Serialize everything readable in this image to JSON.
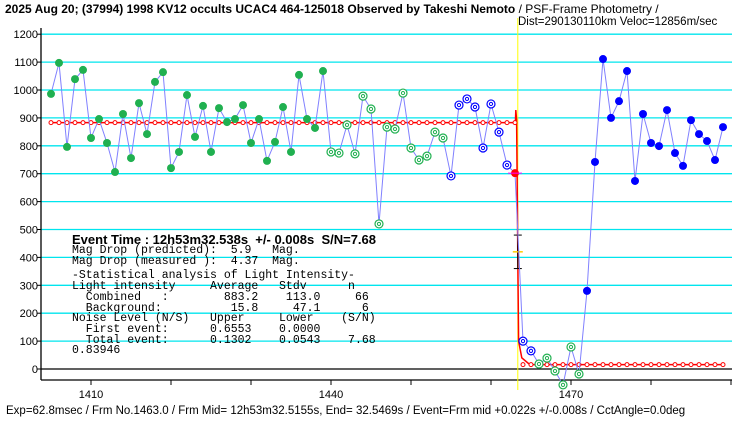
{
  "header": {
    "title_bold": "2025 Aug 20; (37994) 1998 KV12 occults UCAC4 464-125018 Observed by Takeshi Nemoto",
    "title_rest": " / PSF-Frame Photometry /",
    "dist": "Dist=290130110km Veloc=12856m/sec"
  },
  "stats": {
    "event_time": "Event Time : 12h53m32.538s  +/- 0.008s  S/N=7.68",
    "lines": [
      "Mag Drop (predicted):  5.9   Mag.",
      "Mag Drop (measured ):  4.37  Mag.",
      "-Statistical analysis of Light Intensity-",
      "Light intensity     Average   Stdv      n",
      "  Combined   :        883.2    113.0     66",
      "  Background:          15.8     47.1      6",
      "Noise Level (N/S)   Upper     Lower    (S/N)",
      "  First event:      0.6553    0.0000",
      "  Total event:      0.1302    0.0543    7.68",
      "0.83946"
    ]
  },
  "footer": "Exp=62.8msec / Frm No.1463.0 / Frm Mid= 12h53m32.5155s,  End= 32.5469s / Event=Frm mid +0.022s +/-0.008s / CctAngle=0.0deg",
  "chart_data": {
    "type": "scatter",
    "xlim": [
      1404,
      1490
    ],
    "ylim": [
      -30,
      1230
    ],
    "x_ticks": [
      1410,
      1440,
      1470
    ],
    "y_ticks": [
      0,
      100,
      200,
      300,
      400,
      500,
      600,
      700,
      800,
      900,
      1000,
      1100,
      1200
    ],
    "grid": true,
    "colors": {
      "grid": "#00e5ee",
      "line": "#8080ff",
      "model": "#ff0000",
      "green": "#20b050",
      "blue": "#0000ff",
      "event_line": "#ffff00"
    },
    "x": [
      1405,
      1406,
      1407,
      1408,
      1409,
      1410,
      1411,
      1412,
      1413,
      1414,
      1415,
      1416,
      1417,
      1418,
      1419,
      1420,
      1421,
      1422,
      1423,
      1424,
      1425,
      1426,
      1427,
      1428,
      1429,
      1430,
      1431,
      1432,
      1433,
      1434,
      1435,
      1436,
      1437,
      1438,
      1439,
      1440,
      1441,
      1442,
      1443,
      1444,
      1445,
      1446,
      1447,
      1448,
      1449,
      1450,
      1451,
      1452,
      1453,
      1454,
      1455,
      1456,
      1457,
      1458,
      1459,
      1460,
      1461,
      1462,
      1463,
      1464,
      1465,
      1466,
      1467,
      1468,
      1469,
      1470,
      1471,
      1472,
      1473,
      1474,
      1475,
      1476,
      1477,
      1478,
      1479,
      1480,
      1481,
      1482,
      1483,
      1484,
      1485,
      1486,
      1487,
      1488,
      1489
    ],
    "y": [
      986,
      1097,
      796,
      1039,
      1072,
      828,
      896,
      810,
      706,
      914,
      756,
      953,
      842,
      1029,
      1064,
      720,
      778,
      982,
      832,
      943,
      778,
      935,
      885,
      896,
      946,
      810,
      896,
      746,
      814,
      939,
      778,
      1054,
      896,
      864,
      1068,
      778,
      774,
      875,
      771,
      978,
      932,
      520,
      867,
      860,
      989,
      792,
      749,
      763,
      849,
      828,
      692,
      946,
      968,
      939,
      792,
      950,
      849,
      731,
      702,
      100,
      65,
      18,
      39,
      -7,
      -57,
      79,
      -18,
      280,
      742,
      1111,
      900,
      960,
      1068,
      674,
      914,
      810,
      799,
      928,
      774,
      728,
      892,
      842,
      817,
      749,
      867
    ],
    "marker_groups": [
      {
        "from": 1405,
        "to": 1439,
        "style": "green-filled"
      },
      {
        "from": 1440,
        "to": 1454,
        "style": "green-hollow"
      },
      {
        "from": 1455,
        "to": 1465,
        "style": "blue-hollow"
      },
      {
        "from": 1463,
        "to": 1463,
        "style": "red-filled"
      },
      {
        "from": 1466,
        "to": 1471,
        "style": "green-hollow"
      },
      {
        "from": 1472,
        "to": 1489,
        "style": "blue-filled"
      }
    ],
    "model": {
      "upper": 883.2,
      "lower": 15.8,
      "event_frame": 1463.35
    },
    "baseline_value": "0.83946"
  }
}
